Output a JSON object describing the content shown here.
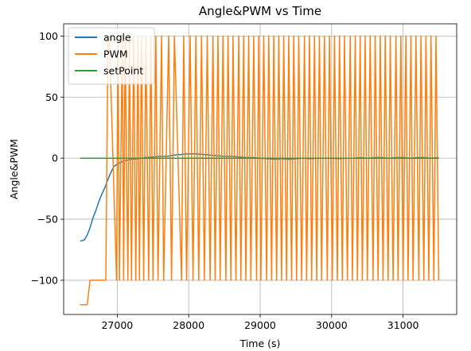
{
  "chart_data": {
    "type": "line",
    "title": "Angle&PWM vs Time",
    "xlabel": "Time (s)",
    "ylabel": "Angle&PWM",
    "xlim": [
      26250,
      31750
    ],
    "ylim": [
      -128,
      110
    ],
    "xticks": [
      27000,
      28000,
      29000,
      30000,
      31000
    ],
    "yticks": [
      -100,
      -50,
      0,
      50,
      100
    ],
    "grid": true,
    "legend_position": "top-left",
    "series": [
      {
        "name": "angle",
        "color": "#1f77b4",
        "x": [
          26480,
          26540,
          26580,
          26620,
          26660,
          26700,
          26740,
          26780,
          26820,
          26860,
          26900,
          26950,
          27000,
          27100,
          27200,
          27300,
          27400,
          27500,
          27600,
          27700,
          27800,
          27900,
          28000,
          28100,
          28200,
          28300,
          28400,
          28500,
          28600,
          28700,
          28800,
          28900,
          29000,
          29100,
          29200,
          29300,
          29400,
          29500,
          29600,
          29700,
          29800,
          29900,
          30000,
          30100,
          30200,
          30300,
          30400,
          30500,
          30600,
          30700,
          30800,
          30900,
          31000,
          31100,
          31200,
          31300,
          31400,
          31500
        ],
        "values": [
          -68,
          -67,
          -63,
          -57,
          -49,
          -43,
          -36,
          -30,
          -25,
          -19,
          -13,
          -7,
          -5,
          -2,
          -1,
          -0.5,
          0.5,
          1,
          1.5,
          1.5,
          2.5,
          3,
          3.5,
          3.5,
          3,
          2.5,
          2,
          1.5,
          1.5,
          1,
          0.5,
          0.5,
          0,
          -0.5,
          -1,
          -0.5,
          -1,
          -0.5,
          0,
          -0.5,
          0,
          0,
          0,
          -0.5,
          0,
          0,
          0.5,
          0,
          0.5,
          0.5,
          0,
          0.5,
          0.5,
          0,
          0.5,
          0.5,
          0,
          0.5
        ]
      },
      {
        "name": "PWM",
        "color": "#ff7f0e",
        "x": [
          26480,
          26580,
          26620,
          26840,
          26870,
          26890,
          26990,
          27010,
          27030,
          27070,
          27090,
          27110,
          27150,
          27170,
          27200,
          27230,
          27260,
          27290,
          27310,
          27340,
          27370,
          27400,
          27440,
          27470,
          27500,
          27540,
          27570,
          27620,
          27650,
          27720,
          27760,
          27800,
          27900,
          27930,
          27970,
          28020,
          28060,
          28100,
          28140,
          28180,
          28220,
          28260,
          28300,
          28340,
          28370,
          28410,
          28440,
          28480,
          28520,
          28550,
          28590,
          28620,
          28660,
          28700,
          28730,
          28770,
          28800,
          28840,
          28870,
          28910,
          28950,
          28980,
          29010,
          29050,
          29090,
          29120,
          29160,
          29190,
          29230,
          29260,
          29300,
          29330,
          29370,
          29400,
          29440,
          29470,
          29510,
          29540,
          29580,
          29620,
          29650,
          29690,
          29720,
          29760,
          29790,
          29830,
          29860,
          29900,
          29940,
          29970,
          30010,
          30040,
          30080,
          30110,
          30150,
          30180,
          30220,
          30260,
          30290,
          30330,
          30360,
          30400,
          30430,
          30470,
          30500,
          30540,
          30580,
          30610,
          30650,
          30680,
          30720,
          30750,
          30790,
          30820,
          30860,
          30900,
          30930,
          30970,
          31000,
          31040,
          31070,
          31110,
          31140,
          31180,
          31220,
          31250,
          31290,
          31320,
          31360,
          31390,
          31430,
          31460,
          31500
        ],
        "values": [
          -120,
          -120,
          -100,
          -100,
          100,
          100,
          -100,
          100,
          -100,
          100,
          -100,
          100,
          -100,
          100,
          -100,
          100,
          -100,
          100,
          -100,
          100,
          -100,
          100,
          -100,
          100,
          -100,
          100,
          -100,
          100,
          -100,
          100,
          -100,
          100,
          -100,
          100,
          -100,
          100,
          -100,
          100,
          -100,
          100,
          -100,
          100,
          -100,
          100,
          -100,
          100,
          -100,
          100,
          -100,
          100,
          -100,
          100,
          -100,
          100,
          -100,
          100,
          -100,
          100,
          -100,
          100,
          -100,
          100,
          -100,
          100,
          -100,
          100,
          -100,
          100,
          -100,
          100,
          -100,
          100,
          -100,
          100,
          -100,
          100,
          -100,
          100,
          -100,
          100,
          -100,
          100,
          -100,
          100,
          -100,
          100,
          -100,
          100,
          -100,
          100,
          -100,
          100,
          -100,
          100,
          -100,
          100,
          -100,
          100,
          -100,
          100,
          -100,
          100,
          -100,
          100,
          -100,
          100,
          -100,
          100,
          -100,
          100,
          -100,
          100,
          -100,
          100,
          -100,
          100,
          -100,
          100,
          -100,
          100,
          -100,
          100,
          -100,
          100,
          -100,
          100,
          -100,
          100,
          -100,
          100,
          -100,
          100,
          -100
        ]
      },
      {
        "name": "setPoint",
        "color": "#2ca02c",
        "x": [
          26480,
          31500
        ],
        "values": [
          0,
          0
        ]
      }
    ]
  }
}
